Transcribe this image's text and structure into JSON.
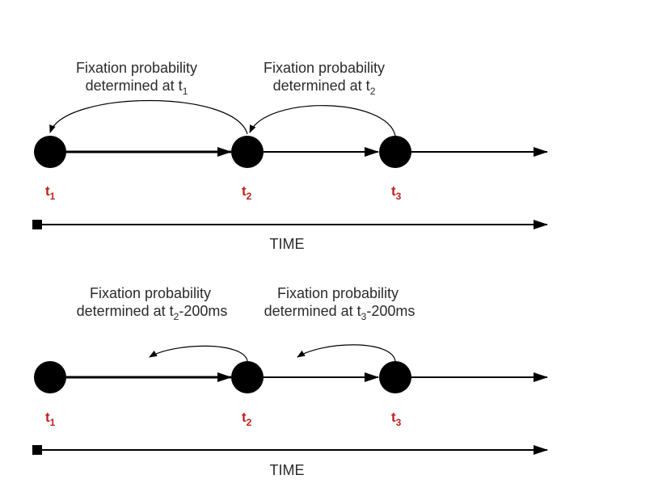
{
  "panels": [
    {
      "timepoints": [
        {
          "label": "t",
          "sub": "1"
        },
        {
          "label": "t",
          "sub": "2"
        },
        {
          "label": "t",
          "sub": "3"
        }
      ],
      "annotations": [
        {
          "line1": "Fixation probability",
          "line2_prefix": "determined at t",
          "line2_sub": "1",
          "line2_suffix": ""
        },
        {
          "line1": "Fixation probability",
          "line2_prefix": "determined at t",
          "line2_sub": "2",
          "line2_suffix": ""
        }
      ],
      "axis_label": "TIME"
    },
    {
      "timepoints": [
        {
          "label": "t",
          "sub": "1"
        },
        {
          "label": "t",
          "sub": "2"
        },
        {
          "label": "t",
          "sub": "3"
        }
      ],
      "annotations": [
        {
          "line1": "Fixation probability",
          "line2_prefix": "determined at t",
          "line2_sub": "2",
          "line2_suffix": "-200ms"
        },
        {
          "line1": "Fixation probability",
          "line2_prefix": "determined at t",
          "line2_sub": "3",
          "line2_suffix": "-200ms"
        }
      ],
      "axis_label": "TIME"
    }
  ],
  "colors": {
    "timepoint_label": "#c0201b",
    "node_fill": "#000000",
    "text": "#2b2b2b"
  }
}
